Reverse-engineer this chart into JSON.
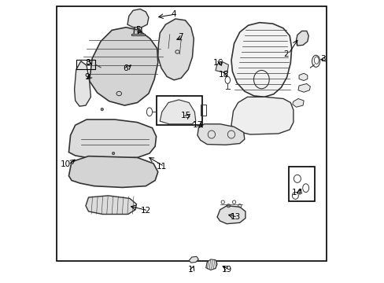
{
  "background_color": "#ffffff",
  "border_color": "#000000",
  "line_color": "#333333",
  "figsize": [
    4.89,
    3.6
  ],
  "dpi": 100
}
